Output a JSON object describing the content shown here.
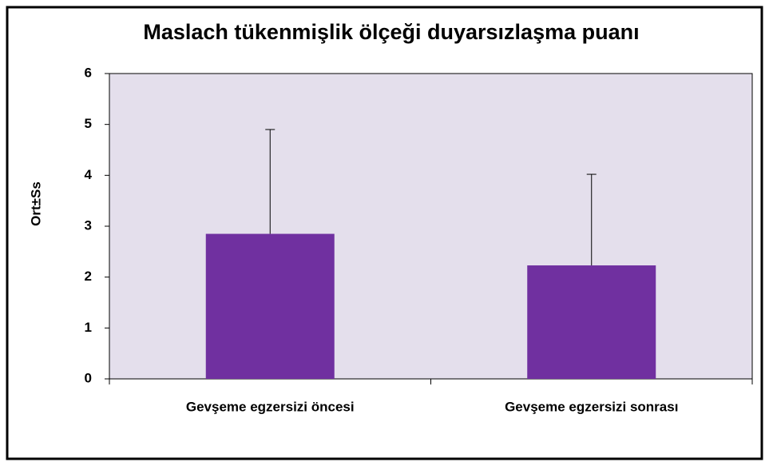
{
  "chart_data": {
    "type": "bar",
    "title": "Maslach tükenmişlik ölçeği duyarsızlaşma puanı",
    "ylabel": "Ort±Ss",
    "categories": [
      "Gevşeme egzersizi öncesi",
      "Gevşeme egzersizi sonrası"
    ],
    "values": [
      2.85,
      2.23
    ],
    "errors": [
      2.05,
      1.79
    ],
    "color": "#7030a0",
    "ylim": [
      0,
      6
    ],
    "yticks": [
      0,
      1,
      2,
      3,
      4,
      5,
      6
    ],
    "grid": false
  }
}
